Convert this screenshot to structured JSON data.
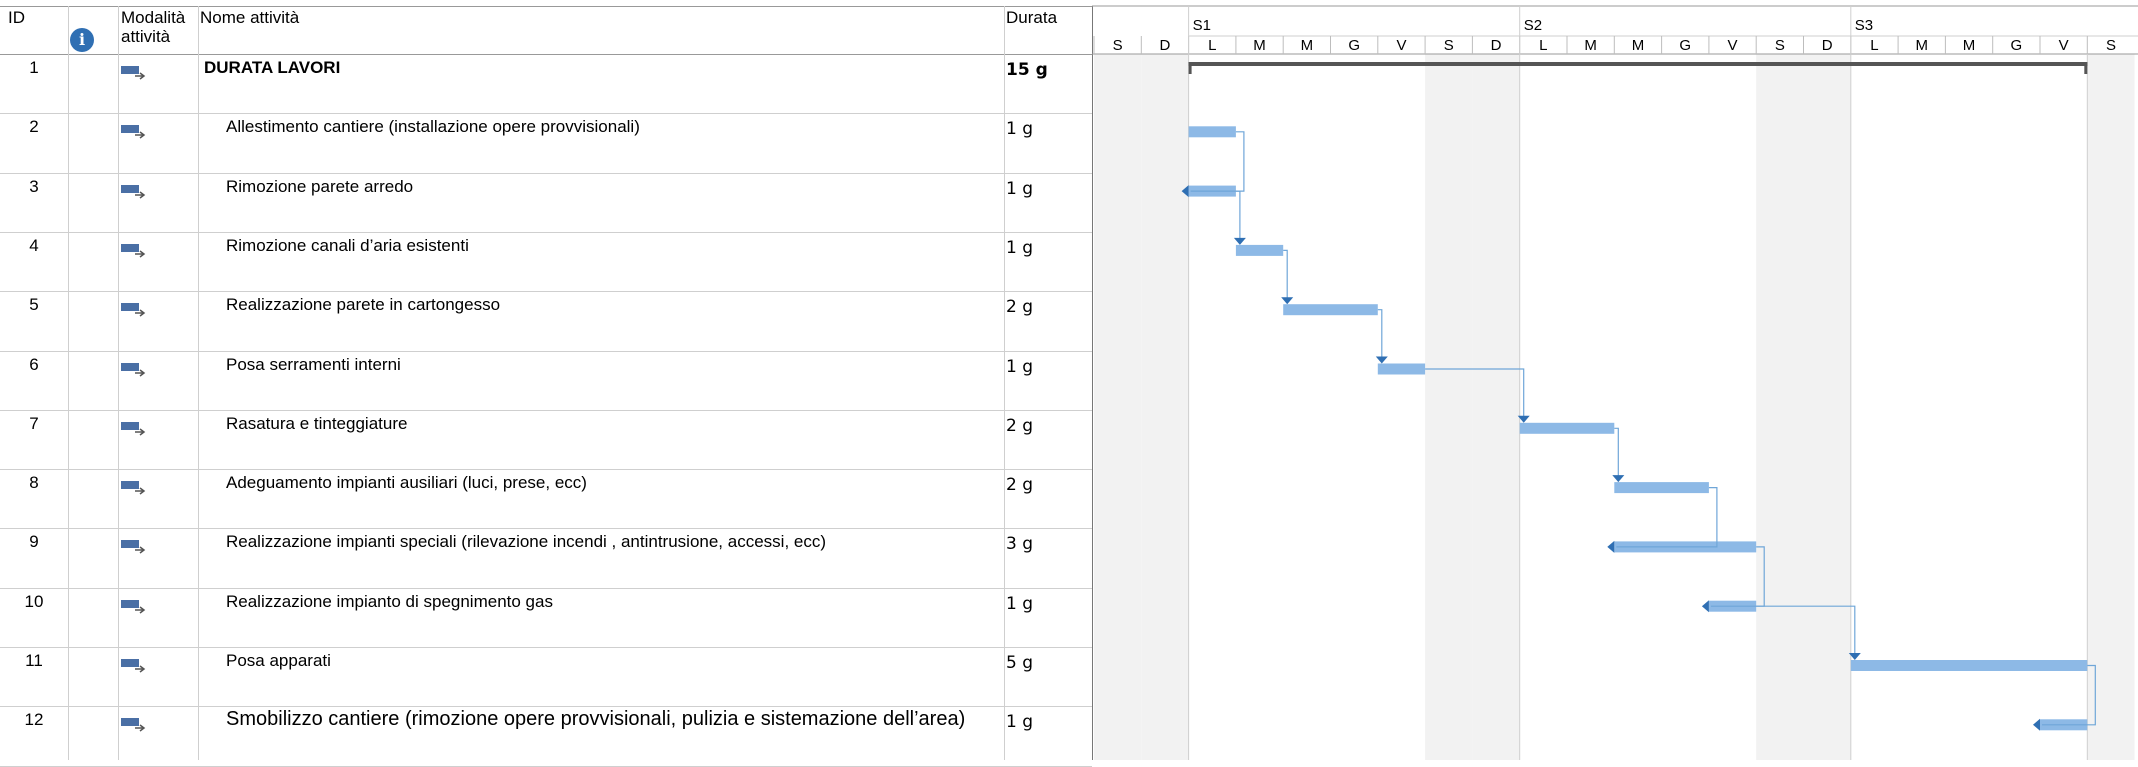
{
  "columns": {
    "id": "ID",
    "mode_line1": "Modalità",
    "mode_line2": "attività",
    "name": "Nome attività",
    "duration": "Durata"
  },
  "timescale": {
    "weeks": [
      "S1",
      "S2",
      "S3"
    ],
    "days": [
      "S",
      "D",
      "L",
      "M",
      "M",
      "G",
      "V",
      "S",
      "D",
      "L",
      "M",
      "M",
      "G",
      "V",
      "S",
      "D",
      "L",
      "M",
      "M",
      "G",
      "V",
      "S"
    ]
  },
  "tasks": [
    {
      "id": "1",
      "name": "DURATA LAVORI",
      "duration": "15 g",
      "summary": true,
      "start_day": 2,
      "end_day": 21
    },
    {
      "id": "2",
      "name": "Allestimento cantiere (installazione opere provvisionali)",
      "duration": "1 g",
      "start_day": 2,
      "end_day": 3
    },
    {
      "id": "3",
      "name": "Rimozione parete arredo",
      "duration": "1 g",
      "start_day": 2,
      "end_day": 3
    },
    {
      "id": "4",
      "name": "Rimozione canali d’aria esistenti",
      "duration": "1 g",
      "start_day": 3,
      "end_day": 4
    },
    {
      "id": "5",
      "name": "Realizzazione parete in cartongesso",
      "duration": "2 g",
      "start_day": 4,
      "end_day": 6
    },
    {
      "id": "6",
      "name": "Posa serramenti interni",
      "duration": "1 g",
      "start_day": 6,
      "end_day": 7
    },
    {
      "id": "7",
      "name": "Rasatura e tinteggiature",
      "duration": "2 g",
      "start_day": 9,
      "end_day": 11
    },
    {
      "id": "8",
      "name": "Adeguamento impianti ausiliari (luci, prese, ecc)",
      "duration": "2 g",
      "start_day": 11,
      "end_day": 13
    },
    {
      "id": "9",
      "name": "Realizzazione impianti speciali (rilevazione incendi , antintrusione, accessi, ecc)",
      "duration": "3 g",
      "start_day": 11,
      "end_day": 14
    },
    {
      "id": "10",
      "name": "Realizzazione impianto di spegnimento gas",
      "duration": "1 g",
      "start_day": 13,
      "end_day": 14
    },
    {
      "id": "11",
      "name": "Posa apparati",
      "duration": "5 g",
      "start_day": 16,
      "end_day": 21
    },
    {
      "id": "12",
      "name": "Smobilizzo cantiere (rimozione opere provvisionali, pulizia e sistemazione dell’area)",
      "duration": "1 g",
      "start_day": 20,
      "end_day": 21
    }
  ],
  "links": [
    [
      2,
      3
    ],
    [
      3,
      4
    ],
    [
      4,
      5
    ],
    [
      5,
      6
    ],
    [
      6,
      7
    ],
    [
      7,
      8
    ],
    [
      8,
      9
    ],
    [
      9,
      10
    ],
    [
      10,
      11
    ],
    [
      11,
      12
    ]
  ],
  "colors": {
    "bar": "#8db9e6",
    "summary": "#555555",
    "grid": "#cfcfcf",
    "weekend": "#f2f2f2",
    "arrow": "#2f6fb3",
    "link": "#6fa6d8"
  }
}
